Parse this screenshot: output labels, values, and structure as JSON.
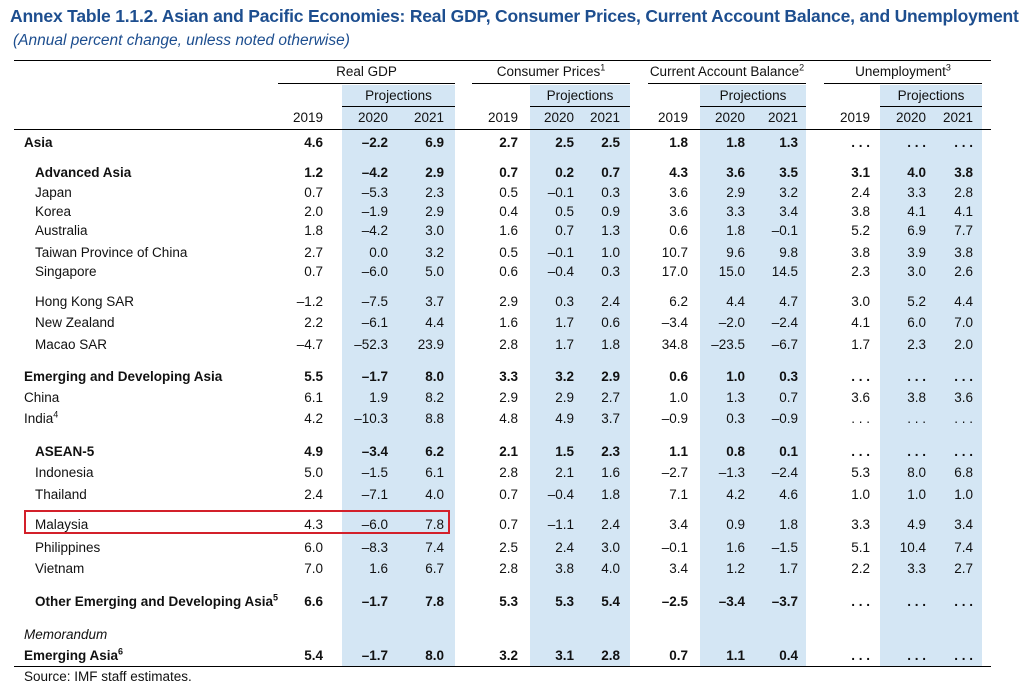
{
  "title": "Annex Table 1.1.2. Asian and Pacific Economies: Real GDP, Consumer Prices, Current Account Balance, and Unemployment",
  "subtitle": "(Annual percent change, unless noted otherwise)",
  "groups": [
    {
      "label": "Real GDP",
      "sup": "",
      "projections": "Projections",
      "years": [
        "2019",
        "2020",
        "2021"
      ]
    },
    {
      "label": "Consumer Prices",
      "sup": "1",
      "projections": "Projections",
      "years": [
        "2019",
        "2020",
        "2021"
      ]
    },
    {
      "label": "Current Account Balance",
      "sup": "2",
      "projections": "Projections",
      "years": [
        "2019",
        "2020",
        "2021"
      ]
    },
    {
      "label": "Unemployment",
      "sup": "3",
      "projections": "Projections",
      "years": [
        "2019",
        "2020",
        "2021"
      ]
    }
  ],
  "rows": [
    {
      "label": "Asia",
      "sup": "",
      "bold": true,
      "indent": 0,
      "values": [
        "4.6",
        "–2.2",
        "6.9",
        "2.7",
        "2.5",
        "2.5",
        "1.8",
        "1.8",
        "1.3",
        ". . .",
        ". . .",
        ". . ."
      ]
    },
    {
      "label": "Advanced Asia",
      "sup": "",
      "bold": true,
      "indent": 1,
      "values": [
        "1.2",
        "–4.2",
        "2.9",
        "0.7",
        "0.2",
        "0.7",
        "4.3",
        "3.6",
        "3.5",
        "3.1",
        "4.0",
        "3.8"
      ]
    },
    {
      "label": "Japan",
      "sup": "",
      "bold": false,
      "indent": 1,
      "values": [
        "0.7",
        "–5.3",
        "2.3",
        "0.5",
        "–0.1",
        "0.3",
        "3.6",
        "2.9",
        "3.2",
        "2.4",
        "3.3",
        "2.8"
      ]
    },
    {
      "label": "Korea",
      "sup": "",
      "bold": false,
      "indent": 1,
      "values": [
        "2.0",
        "–1.9",
        "2.9",
        "0.4",
        "0.5",
        "0.9",
        "3.6",
        "3.3",
        "3.4",
        "3.8",
        "4.1",
        "4.1"
      ]
    },
    {
      "label": "Australia",
      "sup": "",
      "bold": false,
      "indent": 1,
      "values": [
        "1.8",
        "–4.2",
        "3.0",
        "1.6",
        "0.7",
        "1.3",
        "0.6",
        "1.8",
        "–0.1",
        "5.2",
        "6.9",
        "7.7"
      ]
    },
    {
      "label": "Taiwan Province of China",
      "sup": "",
      "bold": false,
      "indent": 1,
      "values": [
        "2.7",
        "0.0",
        "3.2",
        "0.5",
        "–0.1",
        "1.0",
        "10.7",
        "9.6",
        "9.8",
        "3.8",
        "3.9",
        "3.8"
      ]
    },
    {
      "label": "Singapore",
      "sup": "",
      "bold": false,
      "indent": 1,
      "values": [
        "0.7",
        "–6.0",
        "5.0",
        "0.6",
        "–0.4",
        "0.3",
        "17.0",
        "15.0",
        "14.5",
        "2.3",
        "3.0",
        "2.6"
      ]
    },
    {
      "label": "Hong Kong SAR",
      "sup": "",
      "bold": false,
      "indent": 1,
      "values": [
        "–1.2",
        "–7.5",
        "3.7",
        "2.9",
        "0.3",
        "2.4",
        "6.2",
        "4.4",
        "4.7",
        "3.0",
        "5.2",
        "4.4"
      ]
    },
    {
      "label": "New Zealand",
      "sup": "",
      "bold": false,
      "indent": 1,
      "values": [
        "2.2",
        "–6.1",
        "4.4",
        "1.6",
        "1.7",
        "0.6",
        "–3.4",
        "–2.0",
        "–2.4",
        "4.1",
        "6.0",
        "7.0"
      ]
    },
    {
      "label": "Macao SAR",
      "sup": "",
      "bold": false,
      "indent": 1,
      "values": [
        "–4.7",
        "–52.3",
        "23.9",
        "2.8",
        "1.7",
        "1.8",
        "34.8",
        "–23.5",
        "–6.7",
        "1.7",
        "2.3",
        "2.0"
      ]
    },
    {
      "label": "Emerging and Developing Asia",
      "sup": "",
      "bold": true,
      "indent": 0,
      "values": [
        "5.5",
        "–1.7",
        "8.0",
        "3.3",
        "3.2",
        "2.9",
        "0.6",
        "1.0",
        "0.3",
        ". . .",
        ". . .",
        ". . ."
      ]
    },
    {
      "label": "China",
      "sup": "",
      "bold": false,
      "indent": 0,
      "values": [
        "6.1",
        "1.9",
        "8.2",
        "2.9",
        "2.9",
        "2.7",
        "1.0",
        "1.3",
        "0.7",
        "3.6",
        "3.8",
        "3.6"
      ]
    },
    {
      "label": "India",
      "sup": "4",
      "bold": false,
      "indent": 0,
      "values": [
        "4.2",
        "–10.3",
        "8.8",
        "4.8",
        "4.9",
        "3.7",
        "–0.9",
        "0.3",
        "–0.9",
        ". . .",
        ". . .",
        ". . ."
      ]
    },
    {
      "label": "ASEAN-5",
      "sup": "",
      "bold": true,
      "indent": 1,
      "values": [
        "4.9",
        "–3.4",
        "6.2",
        "2.1",
        "1.5",
        "2.3",
        "1.1",
        "0.8",
        "0.1",
        ". . .",
        ". . .",
        ". . ."
      ]
    },
    {
      "label": "Indonesia",
      "sup": "",
      "bold": false,
      "indent": 1,
      "values": [
        "5.0",
        "–1.5",
        "6.1",
        "2.8",
        "2.1",
        "1.6",
        "–2.7",
        "–1.3",
        "–2.4",
        "5.3",
        "8.0",
        "6.8"
      ]
    },
    {
      "label": "Thailand",
      "sup": "",
      "bold": false,
      "indent": 1,
      "values": [
        "2.4",
        "–7.1",
        "4.0",
        "0.7",
        "–0.4",
        "1.8",
        "7.1",
        "4.2",
        "4.6",
        "1.0",
        "1.0",
        "1.0"
      ]
    },
    {
      "label": "Malaysia",
      "sup": "",
      "bold": false,
      "indent": 1,
      "values": [
        "4.3",
        "–6.0",
        "7.8",
        "0.7",
        "–1.1",
        "2.4",
        "3.4",
        "0.9",
        "1.8",
        "3.3",
        "4.9",
        "3.4"
      ]
    },
    {
      "label": "Philippines",
      "sup": "",
      "bold": false,
      "indent": 1,
      "values": [
        "6.0",
        "–8.3",
        "7.4",
        "2.5",
        "2.4",
        "3.0",
        "–0.1",
        "1.6",
        "–1.5",
        "5.1",
        "10.4",
        "7.4"
      ]
    },
    {
      "label": "Vietnam",
      "sup": "",
      "bold": false,
      "indent": 1,
      "values": [
        "7.0",
        "1.6",
        "6.7",
        "2.8",
        "3.8",
        "4.0",
        "3.4",
        "1.2",
        "1.7",
        "2.2",
        "3.3",
        "2.7"
      ]
    },
    {
      "label": "Other Emerging and Developing Asia",
      "sup": "5",
      "bold": true,
      "indent": 1,
      "values": [
        "6.6",
        "–1.7",
        "7.8",
        "5.3",
        "5.3",
        "5.4",
        "–2.5",
        "–3.4",
        "–3.7",
        ". . .",
        ". . .",
        ". . ."
      ]
    },
    {
      "label": "Memorandum",
      "sup": "",
      "bold": false,
      "memo": true,
      "indent": 0,
      "values": []
    },
    {
      "label": "Emerging Asia",
      "sup": "6",
      "bold": true,
      "indent": 0,
      "values": [
        "5.4",
        "–1.7",
        "8.0",
        "3.2",
        "3.1",
        "2.8",
        "0.7",
        "1.1",
        "0.4",
        ". . .",
        ". . .",
        ". . ."
      ]
    }
  ],
  "highlight_row": "Malaysia",
  "highlight_color": "#d3202a",
  "projection_shade_color": "#d4e6f4",
  "title_color": "#1d4e8f",
  "source": "Source: IMF staff estimates."
}
